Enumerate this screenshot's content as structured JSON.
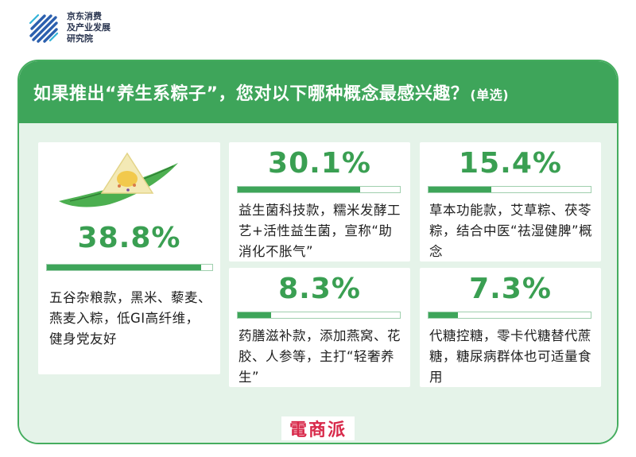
{
  "brand": {
    "logo_icon": "stripe-logo-icon",
    "line1": "京东消费",
    "line2": "及产业发展",
    "line3": "研究院"
  },
  "title": {
    "main": "如果推出“养生系粽子”，您对以下哪种概念最感兴趣？",
    "note": "(单选)"
  },
  "colors": {
    "accent": "#3ea55a",
    "background_tint": "#e5f3e9",
    "watermark": "#d8294a"
  },
  "chart_data": {
    "type": "bar",
    "categories": [
      "五谷杂粮款",
      "益生菌科技款",
      "草本功能款",
      "药膳滋补款",
      "代糖控糖"
    ],
    "values": [
      38.8,
      30.1,
      15.4,
      8.3,
      7.3
    ],
    "ylim": [
      0,
      100
    ],
    "labels": [
      "38.8%",
      "30.1%",
      "15.4%",
      "8.3%",
      "7.3%"
    ],
    "descriptions": [
      "五谷杂粮款，黑米、藜麦、燕麦入粽，低GI高纤维，健身党友好",
      "益生菌科技款，糯米发酵工艺+活性益生菌，宣称“助消化不胀气”",
      "草本功能款，艾草粽、茯苓粽，结合中医“祛湿健脾”概念",
      "药膳滋补款，添加燕窝、花胶、人参等，主打“轻奢养生”",
      "代糖控糖，零卡代糖替代蔗糖，糖尿病群体也可适量食用"
    ]
  },
  "illustration": {
    "icon": "zongzi-leaf-icon"
  },
  "watermark": "電商派"
}
